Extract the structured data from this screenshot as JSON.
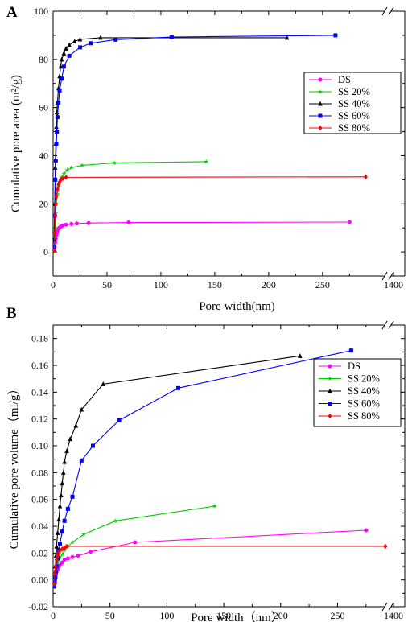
{
  "chart_data": [
    {
      "panel_label": "A",
      "type": "line",
      "xlabel": "Pore width(nm)",
      "ylabel": "Cumulative pore area (m²/g)",
      "xlim": [
        0,
        280
      ],
      "ylim": [
        -10,
        100
      ],
      "x_ticks": [
        "0",
        "50",
        "100",
        "150",
        "200",
        "250"
      ],
      "x_break_tick": "1400",
      "y_ticks": [
        "0",
        "20",
        "40",
        "60",
        "80",
        "100"
      ],
      "legend_position": "right",
      "series": [
        {
          "name": "DS",
          "color": "#ff00ff",
          "marker": "circle",
          "x": [
            1,
            1.5,
            2,
            2.5,
            3,
            3.5,
            4,
            5,
            6,
            7,
            9,
            12,
            17,
            22,
            33,
            70,
            275
          ],
          "y": [
            0.5,
            2,
            4,
            5.5,
            7,
            8,
            8.8,
            9.6,
            10.1,
            10.5,
            11,
            11.3,
            11.6,
            11.8,
            12,
            12.2,
            12.4
          ]
        },
        {
          "name": "SS 20%",
          "color": "#00cc00",
          "marker": "star",
          "x": [
            1,
            1.5,
            2,
            2.5,
            3,
            4,
            5,
            6,
            8,
            10,
            13,
            17,
            27,
            57,
            142
          ],
          "y": [
            0.5,
            5,
            10,
            16,
            20,
            24,
            27,
            29,
            31,
            32.5,
            34,
            35,
            36,
            37,
            37.5
          ]
        },
        {
          "name": "SS 40%",
          "color": "#000000",
          "marker": "triangle",
          "x": [
            1,
            1.5,
            2,
            2.5,
            3,
            3.5,
            4,
            5,
            6,
            7,
            8,
            10,
            12,
            15,
            20,
            25,
            44,
            217
          ],
          "y": [
            5,
            20,
            35,
            45,
            52,
            58,
            62,
            68,
            73,
            77,
            80,
            82.5,
            84.5,
            86,
            87.5,
            88.3,
            89,
            89
          ]
        },
        {
          "name": "SS 60%",
          "color": "#0000ff",
          "marker": "square",
          "x": [
            1,
            1.5,
            2,
            2.5,
            3,
            3.5,
            4,
            5,
            6,
            8,
            10,
            15,
            25,
            35,
            58,
            110,
            262
          ],
          "y": [
            2,
            15,
            30,
            38,
            45,
            50,
            56,
            62,
            67,
            72,
            77,
            81.5,
            85,
            86.7,
            88.2,
            89.3,
            90
          ]
        },
        {
          "name": "SS 80%",
          "color": "#ff0000",
          "marker": "diamond",
          "x": [
            1,
            1.5,
            2,
            2.5,
            3,
            4,
            5,
            6,
            7,
            9,
            12,
            290
          ],
          "y": [
            0.5,
            8,
            15,
            20,
            23,
            26,
            28,
            29,
            30,
            30.5,
            31,
            31.2
          ]
        }
      ]
    },
    {
      "panel_label": "B",
      "type": "line",
      "xlabel": "Pore width（nm）",
      "ylabel": "Cumulative pore volume（ml/g）",
      "xlim": [
        0,
        290
      ],
      "ylim": [
        -0.02,
        0.19
      ],
      "x_ticks": [
        "0",
        "50",
        "100",
        "150",
        "200",
        "250"
      ],
      "x_break_tick": "1400",
      "y_ticks": [
        "-0.02",
        "0.00",
        "0.02",
        "0.04",
        "0.06",
        "0.08",
        "0.10",
        "0.12",
        "0.14",
        "0.16",
        "0.18"
      ],
      "legend_position": "right",
      "series": [
        {
          "name": "DS",
          "color": "#ff00ff",
          "marker": "circle",
          "x": [
            1,
            1.5,
            2,
            2.5,
            3,
            4,
            5,
            6,
            8,
            10,
            13,
            17,
            22,
            33,
            72,
            275
          ],
          "y": [
            -0.004,
            -0.001,
            0.002,
            0.004,
            0.006,
            0.008,
            0.01,
            0.011,
            0.013,
            0.015,
            0.016,
            0.017,
            0.018,
            0.021,
            0.028,
            0.037
          ]
        },
        {
          "name": "SS 20%",
          "color": "#00cc00",
          "marker": "star",
          "x": [
            1,
            1.5,
            2,
            3,
            4,
            5,
            6,
            8,
            10,
            13,
            17,
            27,
            55,
            142
          ],
          "y": [
            -0.003,
            0.002,
            0.006,
            0.01,
            0.013,
            0.015,
            0.017,
            0.019,
            0.022,
            0.025,
            0.028,
            0.034,
            0.044,
            0.055
          ]
        },
        {
          "name": "SS 40%",
          "color": "#000000",
          "marker": "triangle",
          "x": [
            1,
            1.5,
            2,
            2.5,
            3,
            4,
            5,
            6,
            7,
            8,
            9,
            10,
            12,
            15,
            20,
            25,
            44,
            217
          ],
          "y": [
            -0.005,
            0.002,
            0.01,
            0.018,
            0.025,
            0.035,
            0.045,
            0.055,
            0.063,
            0.072,
            0.08,
            0.088,
            0.096,
            0.105,
            0.115,
            0.127,
            0.146,
            0.167
          ]
        },
        {
          "name": "SS 60%",
          "color": "#0000ff",
          "marker": "square",
          "x": [
            1,
            1.5,
            2,
            2.5,
            3,
            4,
            5,
            6,
            8,
            10,
            13,
            17,
            25,
            35,
            58,
            110,
            262
          ],
          "y": [
            -0.005,
            -0.002,
            0.002,
            0.006,
            0.01,
            0.016,
            0.022,
            0.027,
            0.036,
            0.044,
            0.053,
            0.062,
            0.089,
            0.1,
            0.119,
            0.143,
            0.171
          ]
        },
        {
          "name": "SS 80%",
          "color": "#ff0000",
          "marker": "diamond",
          "x": [
            1,
            1.5,
            2,
            3,
            4,
            5,
            6,
            8,
            10,
            12,
            292
          ],
          "y": [
            -0.003,
            0.005,
            0.01,
            0.015,
            0.018,
            0.02,
            0.022,
            0.023,
            0.024,
            0.025,
            0.025
          ]
        }
      ]
    }
  ]
}
